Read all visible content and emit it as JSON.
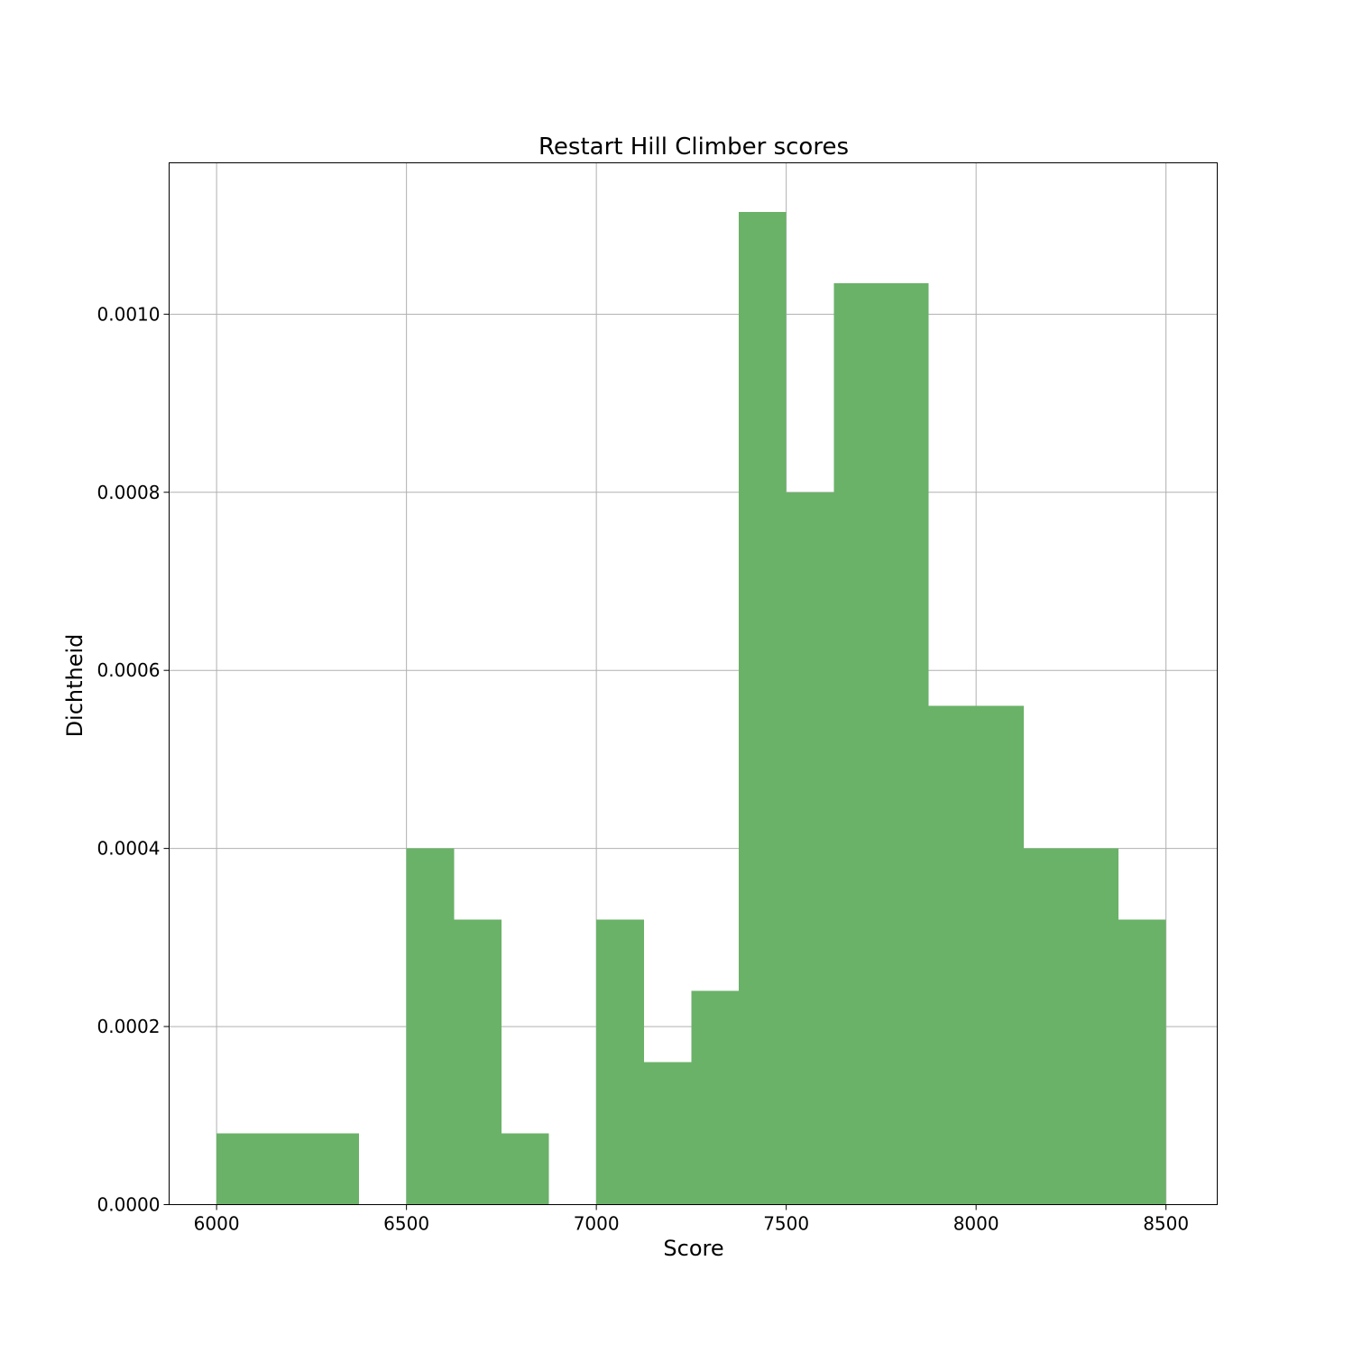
{
  "chart_data": {
    "type": "bar",
    "title": "Restart Hill Climber scores",
    "xlabel": "Score",
    "ylabel": "Dichtheid",
    "xlim": [
      5875,
      8635
    ],
    "ylim": [
      0,
      0.00117
    ],
    "x_ticks": [
      {
        "value": 6000,
        "label": "6000"
      },
      {
        "value": 6500,
        "label": "6500"
      },
      {
        "value": 7000,
        "label": "7000"
      },
      {
        "value": 7500,
        "label": "7500"
      },
      {
        "value": 8000,
        "label": "8000"
      },
      {
        "value": 8500,
        "label": "8500"
      }
    ],
    "y_ticks": [
      {
        "value": 0,
        "label": "0.0000"
      },
      {
        "value": 0.0002,
        "label": "0.0002"
      },
      {
        "value": 0.0004,
        "label": "0.0004"
      },
      {
        "value": 0.0006,
        "label": "0.0006"
      },
      {
        "value": 0.0008,
        "label": "0.0008"
      },
      {
        "value": 0.001,
        "label": "0.0010"
      }
    ],
    "grid": true,
    "bar_color": "#6ab268",
    "bins": [
      {
        "x0": 6000,
        "x1": 6125,
        "value": 8e-05
      },
      {
        "x0": 6125,
        "x1": 6250,
        "value": 8e-05
      },
      {
        "x0": 6250,
        "x1": 6375,
        "value": 8e-05
      },
      {
        "x0": 6375,
        "x1": 6500,
        "value": 0.0
      },
      {
        "x0": 6500,
        "x1": 6625,
        "value": 0.0004
      },
      {
        "x0": 6625,
        "x1": 6750,
        "value": 0.00032
      },
      {
        "x0": 6750,
        "x1": 6875,
        "value": 8e-05
      },
      {
        "x0": 6875,
        "x1": 7000,
        "value": 0.0
      },
      {
        "x0": 7000,
        "x1": 7125,
        "value": 0.00032
      },
      {
        "x0": 7125,
        "x1": 7250,
        "value": 0.00016
      },
      {
        "x0": 7250,
        "x1": 7375,
        "value": 0.00024
      },
      {
        "x0": 7375,
        "x1": 7500,
        "value": 0.001115
      },
      {
        "x0": 7500,
        "x1": 7625,
        "value": 0.0008
      },
      {
        "x0": 7625,
        "x1": 7750,
        "value": 0.001035
      },
      {
        "x0": 7750,
        "x1": 7875,
        "value": 0.001035
      },
      {
        "x0": 7875,
        "x1": 8000,
        "value": 0.00056
      },
      {
        "x0": 8000,
        "x1": 8125,
        "value": 0.00056
      },
      {
        "x0": 8125,
        "x1": 8250,
        "value": 0.0004
      },
      {
        "x0": 8250,
        "x1": 8375,
        "value": 0.0004
      },
      {
        "x0": 8375,
        "x1": 8500,
        "value": 0.00032
      }
    ]
  }
}
